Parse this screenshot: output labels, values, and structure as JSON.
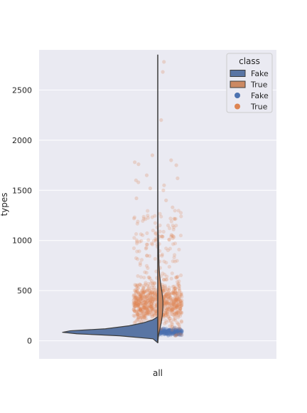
{
  "chart_data": {
    "type": "violin",
    "title": "",
    "xlabel": "",
    "ylabel": "types",
    "categories": [
      "all"
    ],
    "ylim": [
      -180,
      2900
    ],
    "yticks": [
      0,
      500,
      1000,
      1500,
      2000,
      2500
    ],
    "grid": true,
    "legend": {
      "title": "class",
      "placement": "top-right",
      "entries": [
        {
          "label": "Fake",
          "kind": "patch",
          "color": "#5975a4"
        },
        {
          "label": "True",
          "kind": "patch",
          "color": "#cc8963"
        },
        {
          "label": "Fake",
          "kind": "marker",
          "color": "#4c72b0"
        },
        {
          "label": "True",
          "kind": "marker",
          "color": "#dd8452"
        }
      ]
    },
    "series": [
      {
        "name": "Fake",
        "side": "left",
        "color": "#5975a4",
        "point_color": "#4c72b0",
        "range": [
          -20,
          240
        ],
        "density": [
          [
            -20,
            0.0
          ],
          [
            20,
            0.05
          ],
          [
            50,
            0.4
          ],
          [
            70,
            0.85
          ],
          [
            85,
            1.0
          ],
          [
            100,
            0.92
          ],
          [
            120,
            0.55
          ],
          [
            150,
            0.3
          ],
          [
            180,
            0.15
          ],
          [
            210,
            0.05
          ],
          [
            240,
            0.0
          ]
        ],
        "strip_range": [
          20,
          230
        ],
        "strip_center": 90
      },
      {
        "name": "True",
        "side": "right",
        "color": "#cc8963",
        "point_color": "#dd8452",
        "range": [
          -20,
          2850
        ],
        "density": [
          [
            -20,
            0.0
          ],
          [
            60,
            0.04
          ],
          [
            120,
            0.1
          ],
          [
            180,
            0.16
          ],
          [
            250,
            0.21
          ],
          [
            330,
            0.24
          ],
          [
            400,
            0.24
          ],
          [
            480,
            0.2
          ],
          [
            560,
            0.14
          ],
          [
            650,
            0.09
          ],
          [
            750,
            0.06
          ],
          [
            850,
            0.045
          ],
          [
            950,
            0.04
          ],
          [
            1050,
            0.025
          ],
          [
            1150,
            0.012
          ],
          [
            1300,
            0.006
          ],
          [
            1500,
            0.003
          ],
          [
            1800,
            0.0015
          ],
          [
            2200,
            0.0008
          ],
          [
            2600,
            0.0003
          ],
          [
            2850,
            0.0
          ]
        ],
        "strip_range": [
          40,
          1300
        ],
        "strip_center": 380,
        "outliers": [
          1330,
          1400,
          1420,
          1500,
          1520,
          1550,
          1580,
          1600,
          1620,
          1650,
          1750,
          1760,
          1780,
          1800,
          1850,
          2200,
          2680,
          2780
        ]
      }
    ]
  }
}
